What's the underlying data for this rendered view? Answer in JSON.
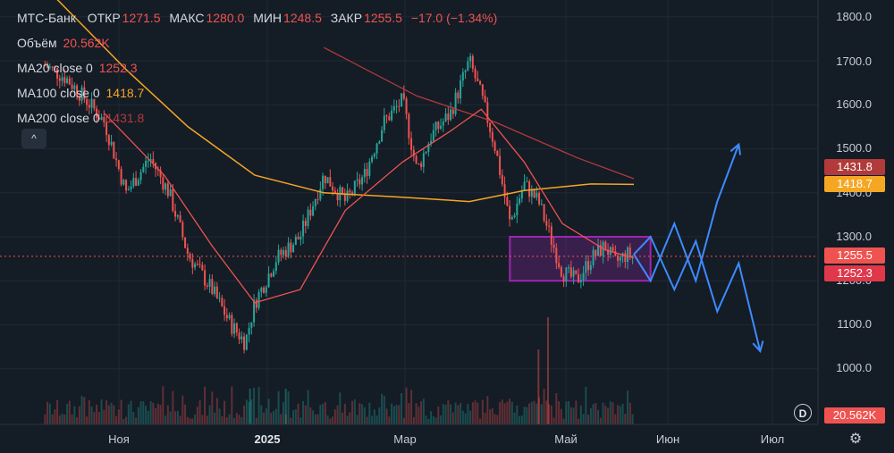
{
  "legend": {
    "ticker": "МТС-Банк",
    "open_label": "ОТКР",
    "open": "1271.5",
    "high_label": "МАКС",
    "high": "1280.0",
    "low_label": "МИН",
    "low": "1248.5",
    "close_label": "ЗАКР",
    "close": "1255.5",
    "change": "−17.0 (−1.34%)",
    "volume_label": "Объём",
    "volume": "20.562K",
    "ma20_label": "MA20 close 0",
    "ma20": "1252.3",
    "ma100_label": "MA100 close 0",
    "ma100": "1418.7",
    "ma200_label": "MA200 close 0",
    "ma200": "1431.8",
    "collapse_icon": "^"
  },
  "y_axis": [
    "1800.0",
    "1700.0",
    "1600.0",
    "1500.0",
    "1400.0",
    "1300.0",
    "1200.0",
    "1100.0",
    "1000.0"
  ],
  "x_axis": [
    "Ноя",
    "2025",
    "Мар",
    "Май",
    "Июн",
    "Июл"
  ],
  "price_tags": {
    "ma200": "1431.8",
    "ma100": "1418.7",
    "close": "1255.5",
    "ma20": "1252.3",
    "volume": "20.562K"
  },
  "colors": {
    "background": "#141c26",
    "up": "#26a69a",
    "down": "#ef5350",
    "ma20": "#ef5350",
    "ma100": "#f5a623",
    "ma200": "#b23a3a",
    "box": "#9c27b0",
    "forecast": "#3d8bfd"
  },
  "d_button": "D",
  "gear_icon": "⚙",
  "chart_data": {
    "type": "candlestick",
    "y_range": [
      940,
      1850
    ],
    "close_line": 1255.5,
    "anchors": [
      {
        "x": "2024-10-01",
        "price": 1690
      },
      {
        "x": "2024-10-10",
        "price": 1660
      },
      {
        "x": "2024-10-20",
        "price": 1600
      },
      {
        "x": "2024-10-26",
        "price": 1560
      },
      {
        "x": "2024-11-04",
        "price": 1400
      },
      {
        "x": "2024-11-14",
        "price": 1480
      },
      {
        "x": "2024-11-22",
        "price": 1400
      },
      {
        "x": "2024-11-30",
        "price": 1260
      },
      {
        "x": "2024-12-10",
        "price": 1180
      },
      {
        "x": "2024-12-18",
        "price": 1100
      },
      {
        "x": "2024-12-24",
        "price": 1060
      },
      {
        "x": "2024-12-28",
        "price": 1150
      },
      {
        "x": "2025-01-06",
        "price": 1250
      },
      {
        "x": "2025-01-16",
        "price": 1300
      },
      {
        "x": "2025-01-26",
        "price": 1440
      },
      {
        "x": "2025-02-04",
        "price": 1380
      },
      {
        "x": "2025-02-12",
        "price": 1440
      },
      {
        "x": "2025-02-20",
        "price": 1560
      },
      {
        "x": "2025-02-28",
        "price": 1610
      },
      {
        "x": "2025-03-06",
        "price": 1450
      },
      {
        "x": "2025-03-12",
        "price": 1530
      },
      {
        "x": "2025-03-20",
        "price": 1580
      },
      {
        "x": "2025-03-28",
        "price": 1700
      },
      {
        "x": "2025-04-02",
        "price": 1620
      },
      {
        "x": "2025-04-08",
        "price": 1500
      },
      {
        "x": "2025-04-14",
        "price": 1330
      },
      {
        "x": "2025-04-20",
        "price": 1420
      },
      {
        "x": "2025-04-26",
        "price": 1380
      },
      {
        "x": "2025-05-01",
        "price": 1300
      },
      {
        "x": "2025-05-06",
        "price": 1220
      },
      {
        "x": "2025-05-12",
        "price": 1200
      },
      {
        "x": "2025-05-18",
        "price": 1250
      },
      {
        "x": "2025-05-24",
        "price": 1280
      },
      {
        "x": "2025-05-28",
        "price": 1240
      },
      {
        "x": "2025-06-02",
        "price": 1260
      },
      {
        "x": "2025-06-05",
        "price": 1255
      }
    ],
    "ma20": [
      {
        "x": "2024-10-26",
        "price": 1580
      },
      {
        "x": "2024-11-20",
        "price": 1440
      },
      {
        "x": "2024-12-10",
        "price": 1280
      },
      {
        "x": "2024-12-28",
        "price": 1150
      },
      {
        "x": "2025-01-16",
        "price": 1180
      },
      {
        "x": "2025-02-04",
        "price": 1360
      },
      {
        "x": "2025-02-28",
        "price": 1470
      },
      {
        "x": "2025-03-20",
        "price": 1540
      },
      {
        "x": "2025-04-02",
        "price": 1590
      },
      {
        "x": "2025-04-20",
        "price": 1470
      },
      {
        "x": "2025-05-06",
        "price": 1330
      },
      {
        "x": "2025-05-24",
        "price": 1270
      },
      {
        "x": "2025-06-05",
        "price": 1252
      }
    ],
    "ma100": [
      {
        "x": "2024-10-06",
        "price": 1840
      },
      {
        "x": "2024-11-04",
        "price": 1680
      },
      {
        "x": "2024-11-30",
        "price": 1550
      },
      {
        "x": "2024-12-28",
        "price": 1440
      },
      {
        "x": "2025-01-26",
        "price": 1400
      },
      {
        "x": "2025-02-28",
        "price": 1390
      },
      {
        "x": "2025-03-28",
        "price": 1380
      },
      {
        "x": "2025-04-20",
        "price": 1405
      },
      {
        "x": "2025-05-18",
        "price": 1420
      },
      {
        "x": "2025-06-05",
        "price": 1419
      }
    ],
    "ma200": [
      {
        "x": "2025-01-26",
        "price": 1730
      },
      {
        "x": "2025-03-06",
        "price": 1620
      },
      {
        "x": "2025-04-08",
        "price": 1560
      },
      {
        "x": "2025-05-12",
        "price": 1480
      },
      {
        "x": "2025-06-05",
        "price": 1432
      }
    ],
    "range_box": {
      "x_start": "2025-04-14",
      "x_end": "2025-06-12",
      "price_top": 1300,
      "price_bottom": 1200
    },
    "forecast_path_1": [
      {
        "x": "2025-06-05",
        "price": 1260
      },
      {
        "x": "2025-06-12",
        "price": 1200
      },
      {
        "x": "2025-06-22",
        "price": 1330
      },
      {
        "x": "2025-07-01",
        "price": 1200
      },
      {
        "x": "2025-07-10",
        "price": 1380
      },
      {
        "x": "2025-07-19",
        "price": 1510
      }
    ],
    "forecast_path_2": [
      {
        "x": "2025-06-05",
        "price": 1260
      },
      {
        "x": "2025-06-12",
        "price": 1300
      },
      {
        "x": "2025-06-22",
        "price": 1180
      },
      {
        "x": "2025-07-01",
        "price": 1290
      },
      {
        "x": "2025-07-10",
        "price": 1130
      },
      {
        "x": "2025-07-19",
        "price": 1240
      },
      {
        "x": "2025-07-28",
        "price": 1040
      }
    ]
  }
}
